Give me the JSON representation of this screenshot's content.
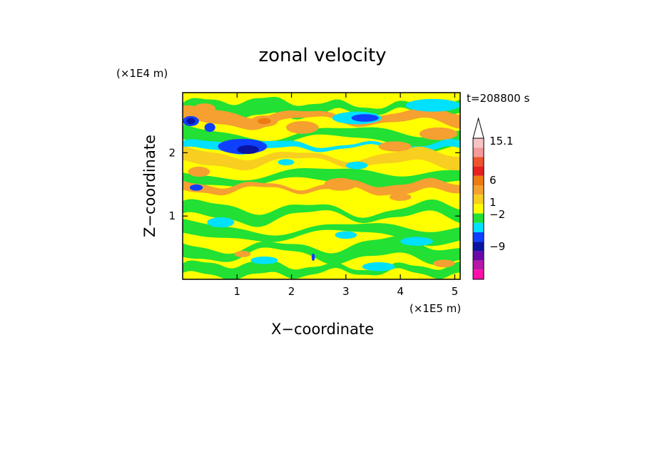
{
  "chart_data": {
    "type": "heatmap",
    "title": "zonal velocity",
    "xlabel": "X−coordinate",
    "ylabel": "Z−coordinate",
    "x_unit": "(×1E5 m)",
    "y_unit": "(×1E4 m)",
    "time_label": "t=208800 s",
    "xlim": [
      0,
      5.1
    ],
    "ylim": [
      0,
      2.95
    ],
    "x_ticks": [
      1,
      2,
      3,
      4,
      5
    ],
    "y_ticks": [
      1,
      2
    ],
    "x_tick_labels": [
      "1",
      "2",
      "3",
      "4",
      "5"
    ],
    "y_tick_labels": [
      "1",
      "2"
    ],
    "colorbar": {
      "labels": [
        "15.1",
        "6",
        "1",
        "−2",
        "−9"
      ],
      "levels": [
        {
          "color": "#ffffff",
          "shape": "triangle"
        },
        {
          "color": "#f7c4c4"
        },
        {
          "color": "#f49a9a"
        },
        {
          "color": "#ee5430"
        },
        {
          "color": "#e62020"
        },
        {
          "color": "#ee7a12"
        },
        {
          "color": "#f5a030"
        },
        {
          "color": "#f8ce20"
        },
        {
          "color": "#ffff00"
        },
        {
          "color": "#22e034"
        },
        {
          "color": "#00e0ff"
        },
        {
          "color": "#1040ff"
        },
        {
          "color": "#0a14a0"
        },
        {
          "color": "#6a0aa8"
        },
        {
          "color": "#b818a8"
        },
        {
          "color": "#ff10a8"
        }
      ]
    },
    "bands": [
      {
        "z": 2.7,
        "amp": 0.06,
        "k": 5,
        "ph": 0.0,
        "w": 0.12,
        "color": "#22e034"
      },
      {
        "z": 2.55,
        "amp": 0.08,
        "k": 3,
        "ph": 1.0,
        "w": 0.1,
        "color": "#f5a030"
      },
      {
        "z": 2.25,
        "amp": 0.1,
        "k": 2,
        "ph": 2.0,
        "w": 0.11,
        "color": "#22e034"
      },
      {
        "z": 2.1,
        "amp": 0.05,
        "k": 4,
        "ph": 0.5,
        "w": 0.06,
        "color": "#00e0ff"
      },
      {
        "z": 1.9,
        "amp": 0.08,
        "k": 3,
        "ph": 1.5,
        "w": 0.1,
        "color": "#f8ce20"
      },
      {
        "z": 1.6,
        "amp": 0.08,
        "k": 2,
        "ph": 3.0,
        "w": 0.12,
        "color": "#22e034"
      },
      {
        "z": 1.45,
        "amp": 0.06,
        "k": 4,
        "ph": 2.2,
        "w": 0.07,
        "color": "#f5a030"
      },
      {
        "z": 1.05,
        "amp": 0.1,
        "k": 3,
        "ph": 0.7,
        "w": 0.1,
        "color": "#22e034"
      },
      {
        "z": 0.75,
        "amp": 0.09,
        "k": 2,
        "ph": 1.7,
        "w": 0.1,
        "color": "#22e034"
      },
      {
        "z": 0.45,
        "amp": 0.1,
        "k": 3,
        "ph": 2.7,
        "w": 0.12,
        "color": "#22e034"
      },
      {
        "z": 0.15,
        "amp": 0.06,
        "k": 5,
        "ph": 0.3,
        "w": 0.09,
        "color": "#22e034"
      }
    ],
    "blobs": [
      {
        "x": 0.15,
        "z": 2.5,
        "rx": 0.15,
        "rz": 0.08,
        "color": "#1040ff"
      },
      {
        "x": 0.5,
        "z": 2.4,
        "rx": 0.1,
        "rz": 0.07,
        "color": "#1040ff"
      },
      {
        "x": 0.15,
        "z": 2.5,
        "rx": 0.08,
        "rz": 0.05,
        "color": "#0a14a0"
      },
      {
        "x": 1.1,
        "z": 2.1,
        "rx": 0.45,
        "rz": 0.12,
        "color": "#1040ff"
      },
      {
        "x": 1.2,
        "z": 2.05,
        "rx": 0.2,
        "rz": 0.07,
        "color": "#0a14a0"
      },
      {
        "x": 3.2,
        "z": 2.55,
        "rx": 0.45,
        "rz": 0.1,
        "color": "#00e0ff"
      },
      {
        "x": 3.35,
        "z": 2.55,
        "rx": 0.25,
        "rz": 0.06,
        "color": "#1040ff"
      },
      {
        "x": 4.6,
        "z": 2.75,
        "rx": 0.5,
        "rz": 0.1,
        "color": "#00e0ff"
      },
      {
        "x": 1.5,
        "z": 2.5,
        "rx": 0.25,
        "rz": 0.09,
        "color": "#f5a030"
      },
      {
        "x": 1.5,
        "z": 2.5,
        "rx": 0.12,
        "rz": 0.05,
        "color": "#ee7a12"
      },
      {
        "x": 0.4,
        "z": 2.7,
        "rx": 0.2,
        "rz": 0.08,
        "color": "#f5a030"
      },
      {
        "x": 2.2,
        "z": 2.4,
        "rx": 0.3,
        "rz": 0.1,
        "color": "#f5a030"
      },
      {
        "x": 3.9,
        "z": 2.1,
        "rx": 0.3,
        "rz": 0.08,
        "color": "#f5a030"
      },
      {
        "x": 4.7,
        "z": 2.3,
        "rx": 0.35,
        "rz": 0.1,
        "color": "#f5a030"
      },
      {
        "x": 0.3,
        "z": 1.7,
        "rx": 0.2,
        "rz": 0.08,
        "color": "#f5a030"
      },
      {
        "x": 2.9,
        "z": 1.5,
        "rx": 0.3,
        "rz": 0.1,
        "color": "#f5a030"
      },
      {
        "x": 0.25,
        "z": 1.45,
        "rx": 0.12,
        "rz": 0.05,
        "color": "#1040ff"
      },
      {
        "x": 1.9,
        "z": 1.85,
        "rx": 0.15,
        "rz": 0.05,
        "color": "#00e0ff"
      },
      {
        "x": 3.2,
        "z": 1.8,
        "rx": 0.2,
        "rz": 0.06,
        "color": "#00e0ff"
      },
      {
        "x": 0.7,
        "z": 0.9,
        "rx": 0.25,
        "rz": 0.08,
        "color": "#00e0ff"
      },
      {
        "x": 3.0,
        "z": 0.7,
        "rx": 0.2,
        "rz": 0.06,
        "color": "#00e0ff"
      },
      {
        "x": 4.3,
        "z": 0.6,
        "rx": 0.3,
        "rz": 0.07,
        "color": "#00e0ff"
      },
      {
        "x": 1.5,
        "z": 0.3,
        "rx": 0.25,
        "rz": 0.06,
        "color": "#00e0ff"
      },
      {
        "x": 2.4,
        "z": 0.35,
        "rx": 0.03,
        "rz": 0.06,
        "color": "#1040ff"
      },
      {
        "x": 3.6,
        "z": 0.2,
        "rx": 0.3,
        "rz": 0.07,
        "color": "#00e0ff"
      },
      {
        "x": 1.1,
        "z": 0.4,
        "rx": 0.15,
        "rz": 0.05,
        "color": "#f5a030"
      },
      {
        "x": 4.8,
        "z": 0.25,
        "rx": 0.2,
        "rz": 0.06,
        "color": "#f5a030"
      },
      {
        "x": 4.0,
        "z": 1.3,
        "rx": 0.2,
        "rz": 0.06,
        "color": "#f5a030"
      }
    ]
  }
}
